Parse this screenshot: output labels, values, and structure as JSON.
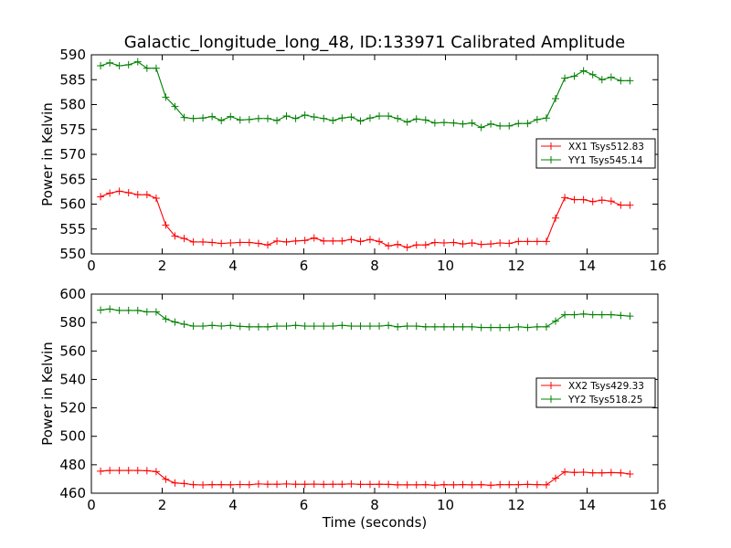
{
  "chart_data": [
    {
      "type": "line",
      "title": "Galactic_longitude_long_48, ID:133971 Calibrated Amplitude",
      "xlabel": "",
      "ylabel": "Power in Kelvin",
      "xlim": [
        0,
        16
      ],
      "ylim": [
        550,
        590
      ],
      "xticks": [
        "0",
        "2",
        "4",
        "6",
        "8",
        "10",
        "12",
        "14",
        "16"
      ],
      "yticks": [
        "550",
        "555",
        "560",
        "565",
        "570",
        "575",
        "580",
        "585",
        "590"
      ],
      "legend_position": "right",
      "x": [
        0.26,
        0.52,
        0.79,
        1.05,
        1.31,
        1.57,
        1.83,
        2.1,
        2.36,
        2.62,
        2.88,
        3.15,
        3.41,
        3.67,
        3.93,
        4.2,
        4.46,
        4.72,
        4.98,
        5.24,
        5.51,
        5.77,
        6.03,
        6.29,
        6.56,
        6.82,
        7.08,
        7.34,
        7.6,
        7.87,
        8.13,
        8.39,
        8.65,
        8.92,
        9.18,
        9.44,
        9.7,
        9.96,
        10.23,
        10.49,
        10.75,
        11.01,
        11.28,
        11.54,
        11.8,
        12.06,
        12.32,
        12.59,
        12.85,
        13.11,
        13.37,
        13.64,
        13.9,
        14.16,
        14.42,
        14.68,
        14.95,
        15.21
      ],
      "series": [
        {
          "name": "XX1 Tsys512.83",
          "color": "#ff0000",
          "values": [
            561.5,
            562.2,
            562.6,
            562.3,
            561.9,
            561.9,
            561.2,
            555.8,
            553.6,
            553.1,
            552.4,
            552.4,
            552.3,
            552.1,
            552.2,
            552.3,
            552.3,
            552.1,
            551.8,
            552.6,
            552.4,
            552.6,
            552.7,
            553.2,
            552.6,
            552.6,
            552.6,
            552.9,
            552.5,
            552.9,
            552.5,
            551.6,
            551.9,
            551.3,
            551.8,
            551.8,
            552.3,
            552.2,
            552.3,
            552.0,
            552.2,
            551.9,
            552.0,
            552.2,
            552.1,
            552.5,
            552.5,
            552.5,
            552.5,
            557.2,
            561.3,
            560.9,
            560.9,
            560.5,
            560.8,
            560.6,
            559.8,
            559.8
          ]
        },
        {
          "name": "YY1 Tsys545.14",
          "color": "#008000",
          "values": [
            587.8,
            588.4,
            587.8,
            588.0,
            588.6,
            587.3,
            587.3,
            581.5,
            579.6,
            577.4,
            577.2,
            577.3,
            577.6,
            576.8,
            577.6,
            576.9,
            577.0,
            577.2,
            577.2,
            576.8,
            577.7,
            577.2,
            577.9,
            577.5,
            577.2,
            576.8,
            577.3,
            577.5,
            576.7,
            577.3,
            577.7,
            577.7,
            577.2,
            576.5,
            577.1,
            576.9,
            576.3,
            576.4,
            576.3,
            576.1,
            576.3,
            575.4,
            576.1,
            575.7,
            575.7,
            576.2,
            576.2,
            577.0,
            577.3,
            581.2,
            585.3,
            585.7,
            586.8,
            586.0,
            585.0,
            585.5,
            584.8,
            584.8
          ]
        }
      ]
    },
    {
      "type": "line",
      "title": "",
      "xlabel": "Time (seconds)",
      "ylabel": "Power in Kelvin",
      "xlim": [
        0,
        16
      ],
      "ylim": [
        460,
        600
      ],
      "xticks": [
        "0",
        "2",
        "4",
        "6",
        "8",
        "10",
        "12",
        "14",
        "16"
      ],
      "yticks": [
        "460",
        "480",
        "500",
        "520",
        "540",
        "560",
        "580",
        "600"
      ],
      "legend_position": "right",
      "x": [
        0.26,
        0.52,
        0.79,
        1.05,
        1.31,
        1.57,
        1.83,
        2.1,
        2.36,
        2.62,
        2.88,
        3.15,
        3.41,
        3.67,
        3.93,
        4.2,
        4.46,
        4.72,
        4.98,
        5.24,
        5.51,
        5.77,
        6.03,
        6.29,
        6.56,
        6.82,
        7.08,
        7.34,
        7.6,
        7.87,
        8.13,
        8.39,
        8.65,
        8.92,
        9.18,
        9.44,
        9.7,
        9.96,
        10.23,
        10.49,
        10.75,
        11.01,
        11.28,
        11.54,
        11.8,
        12.06,
        12.32,
        12.59,
        12.85,
        13.11,
        13.37,
        13.64,
        13.9,
        14.16,
        14.42,
        14.68,
        14.95,
        15.21
      ],
      "series": [
        {
          "name": "XX2 Tsys429.33",
          "color": "#ff0000",
          "values": [
            475.5,
            476.0,
            476.0,
            476.0,
            476.0,
            475.8,
            475.2,
            469.8,
            467.2,
            466.8,
            466.0,
            465.8,
            466.0,
            466.0,
            465.9,
            466.1,
            466.0,
            466.5,
            466.3,
            466.3,
            466.5,
            466.3,
            466.3,
            466.4,
            466.2,
            466.3,
            466.3,
            466.5,
            466.2,
            466.2,
            466.3,
            466.2,
            465.9,
            465.9,
            465.9,
            466.0,
            465.6,
            466.0,
            465.9,
            466.0,
            465.9,
            466.0,
            465.6,
            466.0,
            466.0,
            466.0,
            466.2,
            466.0,
            465.9,
            470.5,
            475.0,
            474.6,
            474.8,
            474.3,
            474.3,
            474.5,
            474.3,
            473.5
          ]
        },
        {
          "name": "YY2 Tsys518.25",
          "color": "#008000",
          "values": [
            588.8,
            589.5,
            588.5,
            588.5,
            588.5,
            587.5,
            587.5,
            582.5,
            580.3,
            578.8,
            577.5,
            577.5,
            578.0,
            577.5,
            578.0,
            577.3,
            577.0,
            577.0,
            577.0,
            577.5,
            577.5,
            578.0,
            577.5,
            577.5,
            577.5,
            577.5,
            578.0,
            577.5,
            577.5,
            577.5,
            577.5,
            578.0,
            577.0,
            577.5,
            577.5,
            577.0,
            577.0,
            577.0,
            577.0,
            577.0,
            577.0,
            576.5,
            576.5,
            576.5,
            576.5,
            577.0,
            576.5,
            577.0,
            577.0,
            581.0,
            585.5,
            585.5,
            586.0,
            585.5,
            585.5,
            585.5,
            585.0,
            584.5
          ]
        }
      ]
    }
  ]
}
